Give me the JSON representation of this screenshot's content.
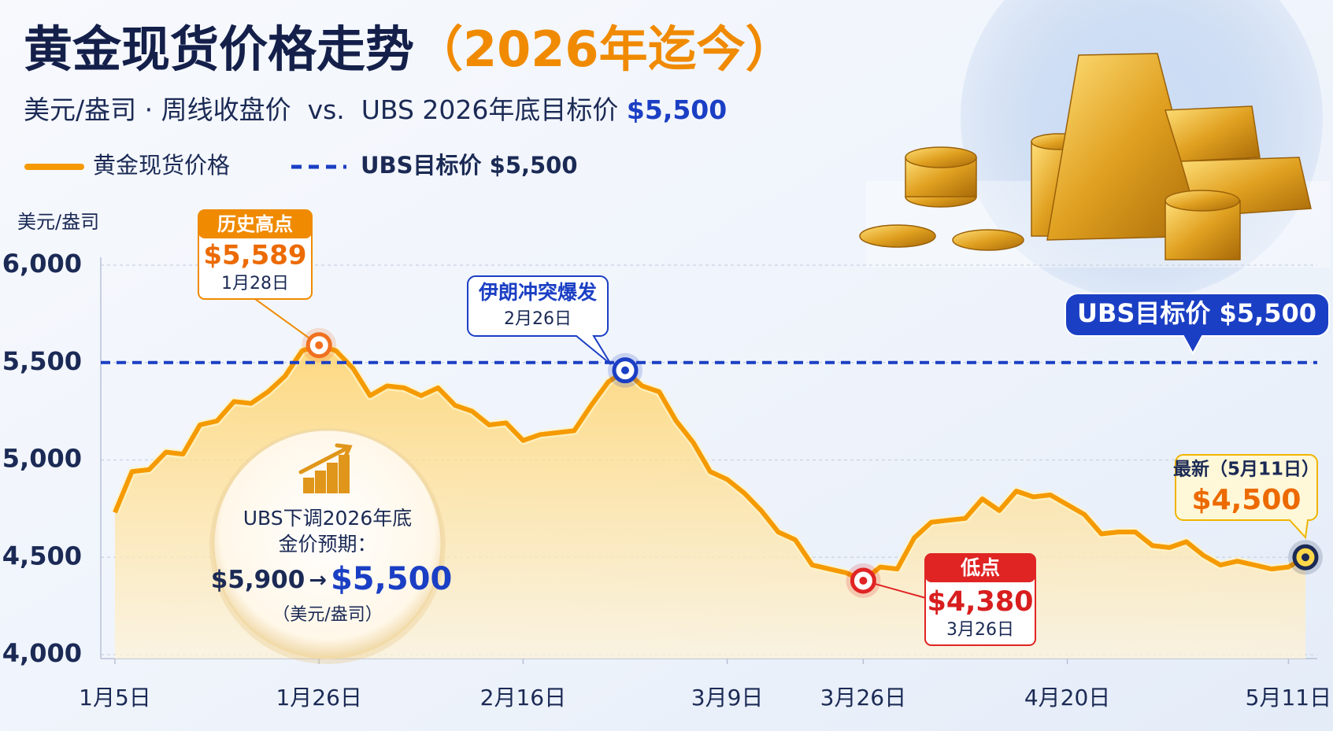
{
  "chart_data": {
    "type": "line",
    "title": "黄金现货价格走势",
    "title_note": "（2026年迄今）",
    "subtitle": "美元/盎司 · 周线收盘价  vs.  UBS 2026年底目标价",
    "subtitle_value": "$5,500",
    "y_label": "美元/盎司",
    "categories": [
      "1月5日",
      null,
      null,
      null,
      null,
      null,
      null,
      null,
      null,
      null,
      null,
      null,
      "1月26日",
      null,
      null,
      null,
      null,
      null,
      null,
      null,
      null,
      null,
      null,
      null,
      "2月16日",
      null,
      null,
      null,
      null,
      null,
      null,
      null,
      null,
      null,
      null,
      null,
      "3月9日",
      null,
      null,
      null,
      null,
      null,
      null,
      null,
      "3月26日",
      null,
      null,
      null,
      null,
      null,
      null,
      null,
      null,
      null,
      null,
      null,
      "4月20日",
      null,
      null,
      null,
      null,
      null,
      null,
      null,
      null,
      null,
      null,
      null,
      null,
      "5月11日",
      null
    ],
    "series": [
      {
        "name": "黄金现货价格",
        "color": "#f59a00",
        "values": [
          4730,
          4940,
          4950,
          5040,
          5030,
          5180,
          5200,
          5300,
          5290,
          5350,
          5430,
          5560,
          5589,
          5560,
          5470,
          5330,
          5380,
          5370,
          5330,
          5370,
          5280,
          5250,
          5180,
          5190,
          5100,
          5130,
          5140,
          5150,
          5280,
          5400,
          5460,
          5380,
          5350,
          5200,
          5090,
          4940,
          4900,
          4830,
          4740,
          4630,
          4590,
          4460,
          4440,
          4420,
          4380,
          4450,
          4440,
          4600,
          4680,
          4690,
          4700,
          4800,
          4740,
          4840,
          4810,
          4820,
          4770,
          4720,
          4620,
          4630,
          4630,
          4560,
          4550,
          4580,
          4510,
          4460,
          4480,
          4460,
          4440,
          4450,
          4500
        ]
      }
    ],
    "target_line": {
      "name": "UBS目标价 $5,500",
      "value": 5500,
      "color": "#1b3fc4"
    },
    "ylim": [
      4000,
      6000
    ],
    "yticks": [
      {
        "value": 4000,
        "label": "4,000"
      },
      {
        "value": 4500,
        "label": "4,500"
      },
      {
        "value": 5000,
        "label": "5,000"
      },
      {
        "value": 5500,
        "label": "5,500"
      },
      {
        "value": 6000,
        "label": "6,000"
      }
    ],
    "grid": true,
    "annotations": {
      "peak": {
        "title": "历史高点",
        "value": 5589,
        "value_label": "$5,589",
        "date": "1月28日"
      },
      "event": {
        "title": "伊朗冲突爆发",
        "date": "2月26日"
      },
      "low": {
        "title": "低点",
        "value": 4380,
        "value_label": "$4,380",
        "date": "3月26日"
      },
      "latest": {
        "title": "最新（5月11日）",
        "value": 4500,
        "value_label": "$4,500"
      }
    },
    "info": {
      "lines": [
        "UBS下调2026年底",
        "金价预期："
      ],
      "from": "$5,900",
      "arrow": "→",
      "to": "$5,500",
      "unit": "（美元/盎司）"
    }
  }
}
